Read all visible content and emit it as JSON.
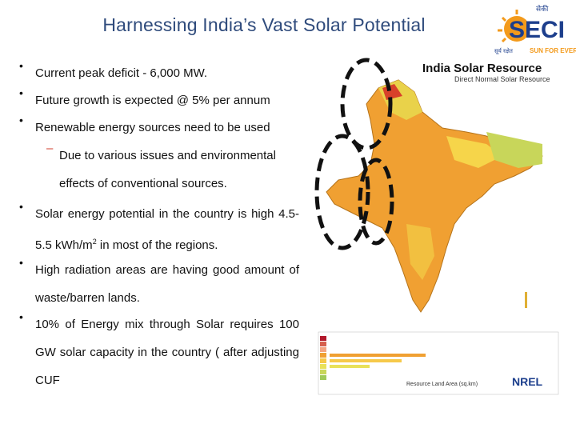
{
  "title": "Harnessing India’s Vast Solar Potential",
  "logo": {
    "top_text": "सेकी",
    "brand": "SECI",
    "hindi_tag": "सूर्य रक्षेत",
    "slogan": "SUN FOR EVER"
  },
  "bullets": [
    {
      "text": "Current peak  deficit - 6,000 MW."
    },
    {
      "text": "Future growth is expected  @ 5% per annum"
    },
    {
      "text": "Renewable energy sources need to be used"
    },
    {
      "sub": "Due to various issues and environmental effects of conventional sources."
    },
    {
      "text_a": "Solar energy potential in the country is high 4.5-5.5 kWh/m",
      "sup": "2",
      "text_b": " in most of the regions."
    },
    {
      "text": "High  radiation    areas  are  having  good amount of waste/barren lands."
    },
    {
      "text": "10%  of  Energy  mix  through  Solar  requires 100  GW solar capacity in the country  ( after adjusting CUF"
    }
  ],
  "map": {
    "title": "India Solar Resource",
    "subtitle": "Direct Normal Solar Resource",
    "nrel": "NREL",
    "legend_label": "Resource Land Area (sq.km)"
  },
  "colors": {
    "title": "#2f4b7c",
    "dash": "#d03d2c",
    "logo_orange": "#f39a1b",
    "logo_blue": "#1c3e8c"
  }
}
